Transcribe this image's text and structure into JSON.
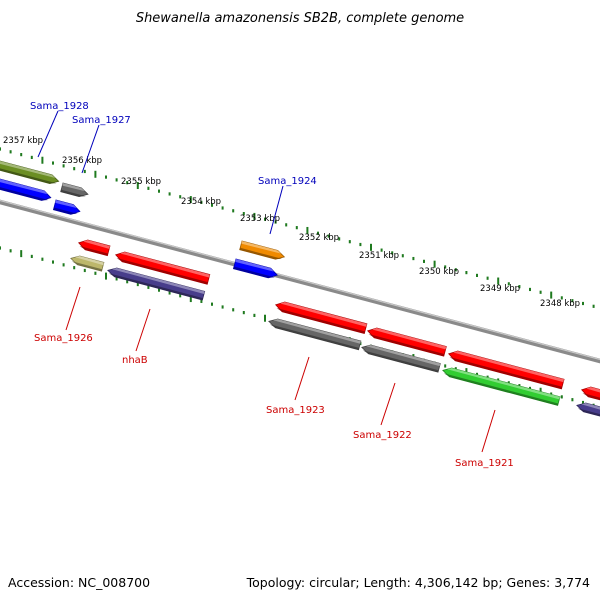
{
  "title": "Shewanella amazonensis SB2B, complete genome",
  "footer": {
    "accession": "Accession: NC_008700",
    "summary": "Topology: circular; Length: 4,306,142 bp; Genes: 3,774"
  },
  "colors": {
    "backbone": "#8a8a8a",
    "tick": "#1f7a1f",
    "label_forward": "#0000bb",
    "label_reverse": "#cc0000",
    "leader_forward": "#0000bb",
    "leader_reverse": "#cc0000"
  },
  "scale_labels": [
    "2357 kbp",
    "2356 kbp",
    "2355 kbp",
    "2354 kbp",
    "2353 kbp",
    "2352 kbp",
    "2351 kbp",
    "2350 kbp",
    "2349 kbp",
    "2348 kbp"
  ],
  "labels": {
    "forward": [
      "Sama_1928",
      "Sama_1927",
      "Sama_1924"
    ],
    "reverse": [
      "Sama_1926",
      "nhaB",
      "Sama_1923",
      "Sama_1922",
      "Sama_1921"
    ]
  },
  "feature_colors": {
    "Sama_1928": "#6b8e23",
    "Sama_1927": "#666666",
    "Sama_1924": "#f08a00",
    "Sama_1926": "#bdb76b",
    "nhaB": "#483d8b",
    "Sama_1923": "#666666",
    "Sama_1922": "#666666",
    "Sama_1921": "#32cd32",
    "cds": "#ff0000",
    "orf": "#0000ff"
  }
}
